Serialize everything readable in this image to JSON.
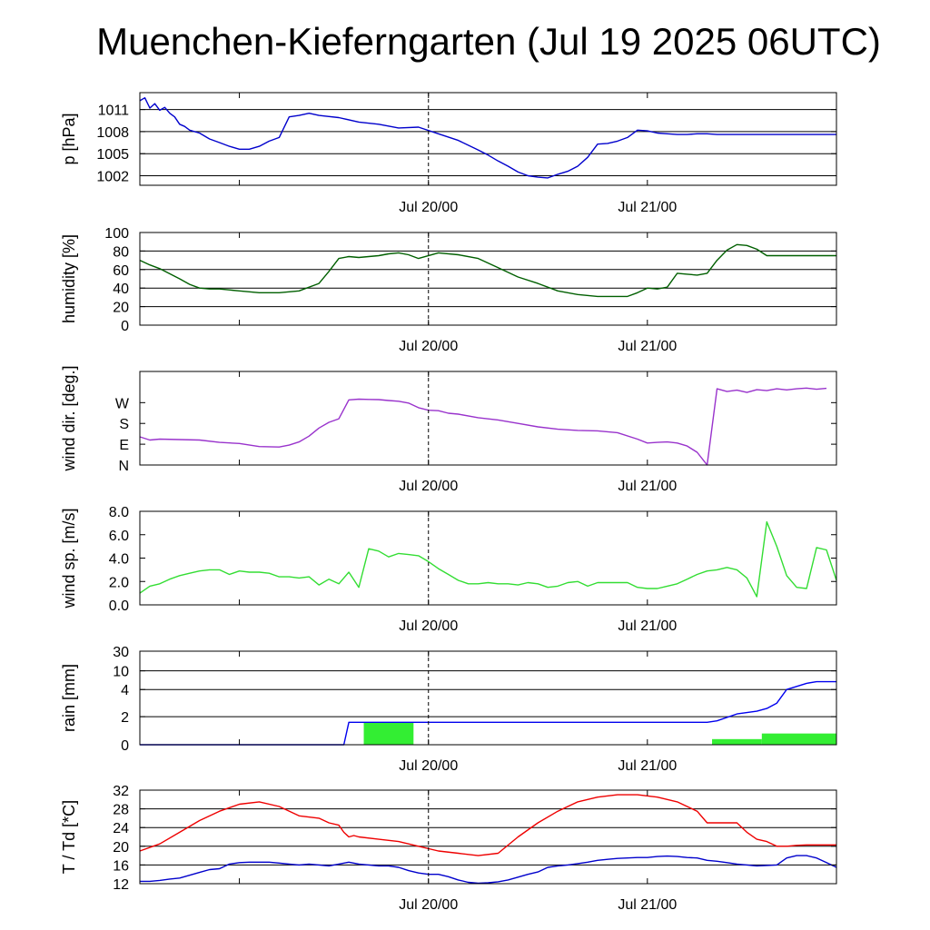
{
  "title": "Muenchen-Kieferngarten (Jul 19 2025 06UTC)",
  "chart_data": [
    {
      "id": "pressure",
      "type": "line",
      "ylabel": "p [hPa]",
      "ylim": [
        1000.7,
        1013.3
      ],
      "yticks": [
        1002,
        1005,
        1008,
        1011
      ],
      "ytick_labels": [
        "1002",
        "1005",
        "1008",
        "1011"
      ],
      "hgrid": [
        1002,
        1005,
        1008,
        1011
      ],
      "xlabels": [
        "Jul 20/00",
        "Jul 21/00"
      ],
      "series": [
        {
          "color": "#0000cc",
          "x": [
            0,
            0.5,
            1,
            1.5,
            2,
            2.5,
            3,
            3.5,
            4,
            4.5,
            5,
            6,
            7,
            8,
            9,
            10,
            11,
            12,
            13,
            14,
            15,
            16,
            17,
            18,
            20,
            22,
            24,
            26,
            28,
            30,
            32,
            34,
            35,
            36,
            37,
            38,
            39,
            40,
            41,
            42,
            43,
            44,
            45,
            46,
            47,
            48,
            49,
            50,
            51,
            52,
            53,
            54,
            55,
            56,
            57,
            58,
            59,
            60,
            61,
            62,
            63,
            64,
            65,
            66,
            67,
            68,
            69,
            70
          ],
          "y": [
            1012.2,
            1012.6,
            1011.2,
            1011.8,
            1010.9,
            1011.3,
            1010.5,
            1010.0,
            1009.0,
            1008.7,
            1008.2,
            1007.8,
            1007.0,
            1006.5,
            1006.0,
            1005.6,
            1005.6,
            1006.0,
            1006.7,
            1007.2,
            1010.0,
            1010.2,
            1010.5,
            1010.2,
            1009.9,
            1009.3,
            1009.0,
            1008.5,
            1008.6,
            1007.7,
            1006.8,
            1005.5,
            1004.8,
            1004.0,
            1003.3,
            1002.5,
            1002.0,
            1001.8,
            1001.7,
            1002.2,
            1002.6,
            1003.3,
            1004.5,
            1006.3,
            1006.4,
            1006.7,
            1007.2,
            1008.2,
            1008.1,
            1007.8,
            1007.7,
            1007.6,
            1007.6,
            1007.7,
            1007.7,
            1007.6,
            1007.6,
            1007.6,
            1007.6,
            1007.6,
            1007.6,
            1007.6,
            1007.6,
            1007.6,
            1007.6,
            1007.6,
            1007.6,
            1007.6
          ]
        }
      ]
    },
    {
      "id": "humidity",
      "type": "line",
      "ylabel": "humidity [%]",
      "ylim": [
        0,
        100
      ],
      "yticks": [
        0,
        20,
        40,
        60,
        80,
        100
      ],
      "ytick_labels": [
        "0",
        "20",
        "40",
        "60",
        "80",
        "100"
      ],
      "hgrid": [
        20,
        40,
        60,
        80
      ],
      "xlabels": [
        "Jul 20/00",
        "Jul 21/00"
      ],
      "series": [
        {
          "color": "#005f00",
          "x": [
            0,
            1,
            2,
            4,
            5,
            6,
            7,
            8,
            10,
            12,
            14,
            16,
            18,
            19,
            20,
            21,
            22,
            23,
            24,
            25,
            26,
            27,
            28,
            30,
            32,
            34,
            36,
            38,
            40,
            42,
            44,
            46,
            48,
            49,
            50,
            51,
            52,
            53,
            54,
            55,
            56,
            57,
            58,
            59,
            60,
            61,
            62,
            63,
            64,
            65,
            66,
            67,
            68,
            69,
            70
          ],
          "y": [
            70,
            65,
            61,
            50,
            44,
            40,
            39,
            39,
            37,
            35,
            35,
            37,
            45,
            58,
            72,
            74,
            73,
            74,
            75,
            77,
            78,
            76,
            72,
            78,
            76,
            72,
            62,
            52,
            45,
            37,
            33,
            31,
            31,
            31,
            35,
            40,
            39,
            41,
            56,
            55,
            54,
            56,
            70,
            81,
            87,
            86,
            82,
            75,
            75,
            75,
            75,
            75,
            75,
            75,
            75
          ]
        }
      ]
    },
    {
      "id": "wind-direction",
      "type": "line",
      "ylabel": "wind dir. [deg.]",
      "ylim": [
        0,
        405
      ],
      "yticks": [
        0,
        90,
        180,
        270
      ],
      "ytick_labels": [
        "N",
        "E",
        "S",
        "W"
      ],
      "hgrid": [],
      "xlabels": [
        "Jul 20/00",
        "Jul 21/00"
      ],
      "series": [
        {
          "color": "#9933cc",
          "x": [
            0,
            1,
            2,
            4,
            6,
            8,
            10,
            12,
            14,
            15,
            16,
            17,
            18,
            19,
            20,
            21,
            22,
            23,
            24,
            25,
            26,
            27,
            28,
            29,
            30,
            31,
            32,
            34,
            36,
            38,
            40,
            42,
            44,
            46,
            48,
            50,
            51,
            52,
            53,
            54,
            55,
            56,
            57,
            58,
            59,
            60,
            61,
            62,
            63,
            64,
            65,
            66,
            67,
            68,
            69,
            70
          ],
          "y": [
            122,
            108,
            112,
            110,
            108,
            98,
            93,
            80,
            78,
            86,
            100,
            125,
            160,
            185,
            200,
            282,
            285,
            284,
            283,
            279,
            276,
            268,
            248,
            237,
            235,
            224,
            220,
            205,
            195,
            180,
            165,
            155,
            150,
            148,
            140,
            112,
            95,
            98,
            100,
            95,
            82,
            55,
            0,
            330,
            318,
            324,
            314,
            326,
            322,
            330,
            325,
            330,
            333,
            328,
            332,
            329
          ],
          "breaks_after_index": [
            54
          ]
        }
      ]
    },
    {
      "id": "wind-speed",
      "type": "line",
      "ylabel": "wind sp. [m/s]",
      "ylim": [
        0,
        8
      ],
      "yticks": [
        0,
        2,
        4,
        6,
        8
      ],
      "ytick_labels": [
        "0.0",
        "2.0",
        "4.0",
        "6.0",
        "8.0"
      ],
      "hgrid": [],
      "xlabels": [
        "Jul 20/00",
        "Jul 21/00"
      ],
      "series": [
        {
          "color": "#33dd33",
          "x": [
            0,
            1,
            2,
            3,
            4,
            5,
            6,
            7,
            8,
            9,
            10,
            11,
            12,
            13,
            14,
            15,
            16,
            17,
            18,
            19,
            20,
            21,
            22,
            23,
            24,
            25,
            26,
            27,
            28,
            29,
            30,
            31,
            32,
            33,
            34,
            35,
            36,
            37,
            38,
            39,
            40,
            41,
            42,
            43,
            44,
            45,
            46,
            47,
            48,
            49,
            50,
            51,
            52,
            53,
            54,
            55,
            56,
            57,
            58,
            59,
            60,
            61,
            62,
            63,
            64,
            65,
            66,
            67,
            68,
            69,
            70
          ],
          "y": [
            1.0,
            1.6,
            1.8,
            2.2,
            2.5,
            2.7,
            2.9,
            3.0,
            3.0,
            2.6,
            2.9,
            2.8,
            2.8,
            2.7,
            2.4,
            2.4,
            2.3,
            2.4,
            1.7,
            2.2,
            1.8,
            2.8,
            1.5,
            4.8,
            4.6,
            4.1,
            4.4,
            4.3,
            4.2,
            3.7,
            3.1,
            2.6,
            2.1,
            1.8,
            1.8,
            1.9,
            1.8,
            1.8,
            1.7,
            1.9,
            1.8,
            1.5,
            1.6,
            1.9,
            2.0,
            1.6,
            1.9,
            1.9,
            1.9,
            1.9,
            1.5,
            1.4,
            1.4,
            1.6,
            1.8,
            2.2,
            2.6,
            2.9,
            3.0,
            3.2,
            3.0,
            2.3,
            0.7,
            7.1,
            5.0,
            2.5,
            1.5,
            1.4,
            4.9,
            4.7,
            2.1
          ]
        }
      ]
    },
    {
      "id": "rain",
      "type": "bar",
      "ylabel": "rain [mm]",
      "ylim": [
        0,
        30
      ],
      "scale": "piecewise",
      "yticks": [
        0,
        2,
        4,
        10,
        30
      ],
      "ytick_labels": [
        "0",
        "2",
        "4",
        "10",
        "30"
      ],
      "hgrid": [
        2,
        4,
        10
      ],
      "xlabels": [
        "Jul 20/00",
        "Jul 21/00"
      ],
      "bars": [
        {
          "color": "#33ee33",
          "x0": 22.5,
          "x1": 27.5,
          "value": 1.6
        },
        {
          "color": "#33ee33",
          "x0": 57.5,
          "x1": 62.5,
          "value": 0.4
        },
        {
          "color": "#33ee33",
          "x0": 62.5,
          "x1": 70,
          "value": 0.8
        }
      ],
      "series": [
        {
          "color": "#0000ee",
          "name_shown": false,
          "x": [
            0,
            20.5,
            21.0,
            22,
            30,
            40,
            55,
            57,
            58,
            60,
            61,
            62,
            63,
            64,
            65,
            66,
            67,
            68,
            69,
            70
          ],
          "y": [
            0,
            0,
            1.6,
            1.6,
            1.6,
            1.6,
            1.6,
            1.6,
            1.7,
            2.2,
            2.3,
            2.4,
            2.6,
            3.0,
            4.0,
            5.0,
            6.0,
            6.5,
            6.5,
            6.5
          ]
        }
      ]
    },
    {
      "id": "temperature",
      "type": "line",
      "ylabel": "T / Td [*C]",
      "ylim": [
        12,
        32
      ],
      "yticks": [
        12,
        16,
        20,
        24,
        28,
        32
      ],
      "ytick_labels": [
        "12",
        "16",
        "20",
        "24",
        "28",
        "32"
      ],
      "hgrid": [
        16,
        20,
        24,
        28
      ],
      "xlabels": [
        "Jul 20/00",
        "Jul 21/00"
      ],
      "series": [
        {
          "color": "#ee0000",
          "x": [
            0,
            2,
            4,
            6,
            8,
            10,
            12,
            14,
            16,
            18,
            19,
            20,
            20.5,
            21,
            21.5,
            22,
            24,
            26,
            28,
            30,
            32,
            34,
            36,
            38,
            40,
            42,
            44,
            46,
            48,
            50,
            52,
            54,
            56,
            57,
            58,
            59,
            60,
            61,
            62,
            63,
            64,
            65,
            66,
            67,
            68,
            69,
            70
          ],
          "y": [
            19.0,
            20.5,
            23.0,
            25.5,
            27.5,
            29.0,
            29.5,
            28.5,
            26.5,
            26.0,
            25.0,
            24.5,
            23.0,
            22.0,
            22.3,
            22.0,
            21.5,
            21.0,
            20.0,
            19.0,
            18.5,
            18.0,
            18.5,
            22.0,
            25.0,
            27.5,
            29.5,
            30.5,
            31.0,
            31.0,
            30.5,
            29.5,
            27.5,
            25.0,
            25.0,
            25.0,
            25.0,
            23.0,
            21.5,
            21.0,
            20.0,
            20.0,
            20.2,
            20.3,
            20.3,
            20.3,
            20.3
          ]
        },
        {
          "color": "#0000cc",
          "x": [
            0,
            1,
            2,
            3,
            4,
            5,
            6,
            7,
            8,
            9,
            10,
            11,
            12,
            13,
            14,
            15,
            16,
            17,
            18,
            19,
            20,
            21,
            22,
            23,
            24,
            25,
            26,
            27,
            28,
            29,
            30,
            31,
            32,
            33,
            34,
            35,
            36,
            37,
            38,
            39,
            40,
            41,
            42,
            43,
            44,
            45,
            46,
            47,
            48,
            49,
            50,
            51,
            52,
            53,
            54,
            55,
            56,
            57,
            58,
            59,
            60,
            61,
            62,
            63,
            64,
            65,
            66,
            67,
            68,
            69,
            70
          ],
          "y": [
            12.5,
            12.5,
            12.7,
            13.0,
            13.2,
            13.8,
            14.4,
            15.0,
            15.2,
            16.2,
            16.5,
            16.6,
            16.6,
            16.6,
            16.4,
            16.2,
            16.0,
            16.2,
            16.0,
            15.8,
            16.2,
            16.6,
            16.2,
            16.0,
            15.8,
            15.8,
            15.5,
            14.8,
            14.3,
            14.0,
            14.0,
            13.5,
            12.8,
            12.3,
            12.1,
            12.2,
            12.4,
            12.8,
            13.4,
            14.0,
            14.5,
            15.5,
            15.8,
            16.0,
            16.3,
            16.6,
            17.0,
            17.2,
            17.4,
            17.5,
            17.6,
            17.6,
            17.8,
            17.9,
            17.8,
            17.6,
            17.5,
            17.0,
            16.8,
            16.5,
            16.2,
            16.0,
            15.8,
            15.9,
            16.0,
            17.5,
            18.0,
            18.0,
            17.5,
            16.5,
            15.5
          ]
        }
      ]
    }
  ]
}
